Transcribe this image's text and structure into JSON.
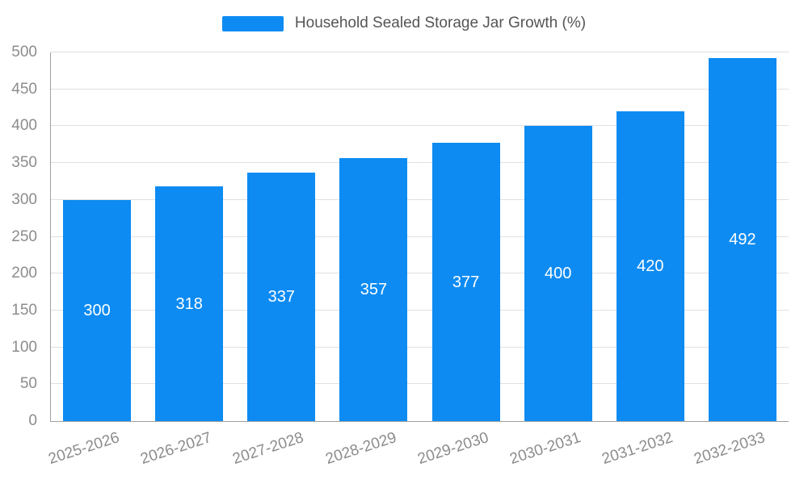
{
  "legend": {
    "label": "Household Sealed Storage Jar Growth (%)"
  },
  "chart_data": {
    "type": "bar",
    "title": "Household Sealed Storage Jar Growth (%)",
    "categories": [
      "2025-2026",
      "2026-2027",
      "2027-2028",
      "2028-2029",
      "2029-2030",
      "2030-2031",
      "2031-2032",
      "2032-2033"
    ],
    "values": [
      300,
      318,
      337,
      357,
      377,
      400,
      420,
      492
    ],
    "xlabel": "",
    "ylabel": "",
    "ylim": [
      0,
      500
    ],
    "yticks": [
      0,
      50,
      100,
      150,
      200,
      250,
      300,
      350,
      400,
      450,
      500
    ],
    "grid": true,
    "legend_position": "top",
    "bar_label_position": "inside-center",
    "colors": {
      "bar": "#0d8bf2",
      "bar_label": "#ffffff",
      "axis_label": "#8c8c8c",
      "gridline": "#e0e0e0",
      "axis_line": "#9e9e9e",
      "title": "#555555"
    }
  }
}
